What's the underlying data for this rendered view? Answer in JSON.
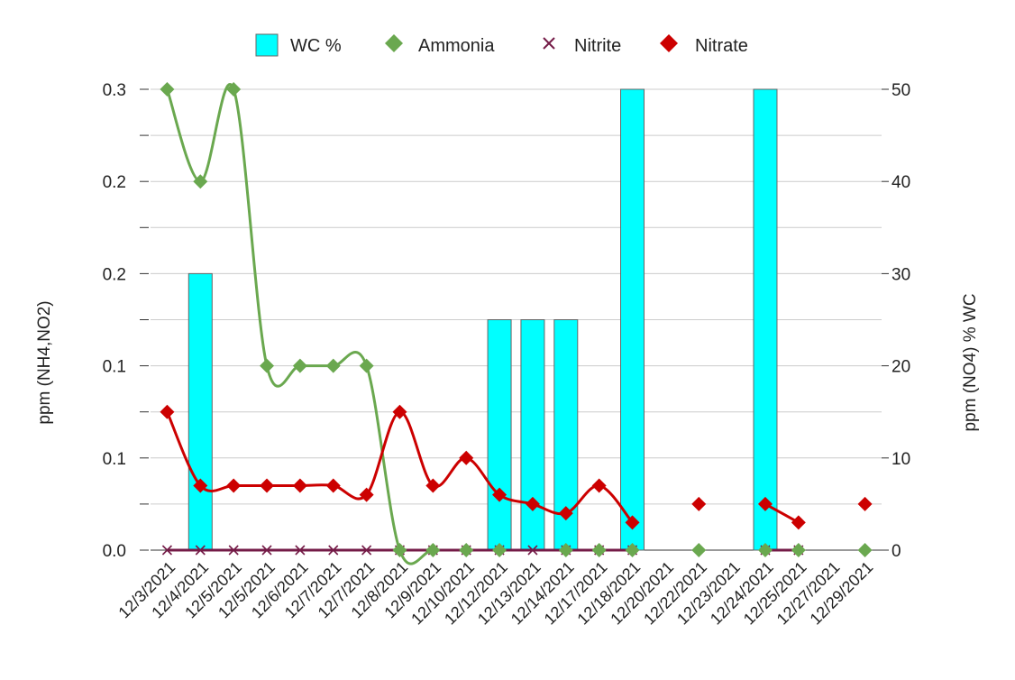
{
  "chart_data": {
    "type": "bar+line",
    "title": "",
    "categories": [
      "12/3/2021",
      "12/4/2021",
      "12/5/2021",
      "12/5/2021",
      "12/6/2021",
      "12/7/2021",
      "12/7/2021",
      "12/8/2021",
      "12/9/2021",
      "12/10/2021",
      "12/12/2021",
      "12/13/2021",
      "12/14/2021",
      "12/17/2021",
      "12/18/2021",
      "12/20/2021",
      "12/22/2021",
      "12/23/2021",
      "12/24/2021",
      "12/25/2021",
      "12/27/2021",
      "12/29/2021"
    ],
    "left_axis": {
      "label": "ppm (NH4,NO2)",
      "range": [
        0,
        0.25
      ],
      "major_ticks": [
        0,
        0.05,
        0.1,
        0.15,
        0.2,
        0.25
      ],
      "tick_labels": [
        "0.0",
        "0.1",
        "0.1",
        "0.2",
        "0.2",
        "0.3"
      ]
    },
    "right_axis": {
      "label": "ppm (NO4) % WC",
      "range": [
        0,
        50
      ],
      "ticks": [
        0,
        10,
        20,
        30,
        40,
        50
      ],
      "tick_labels": [
        "0",
        "10",
        "20",
        "30",
        "40",
        "50"
      ]
    },
    "legend": {
      "position": "top",
      "entries": [
        {
          "name": "WC %",
          "marker": "bar"
        },
        {
          "name": "Ammonia",
          "marker": "diamond"
        },
        {
          "name": "Nitrite",
          "marker": "x"
        },
        {
          "name": "Nitrate",
          "marker": "diamond"
        }
      ]
    },
    "series": [
      {
        "name": "WC %",
        "type": "bar",
        "axis": "right",
        "color": "#00ffff",
        "values": [
          null,
          30,
          null,
          null,
          null,
          null,
          null,
          null,
          null,
          null,
          25,
          25,
          25,
          null,
          50,
          null,
          null,
          null,
          50,
          null,
          null,
          null
        ]
      },
      {
        "name": "Ammonia",
        "type": "line",
        "axis": "left",
        "color": "#6aa84f",
        "values": [
          0.25,
          0.2,
          0.25,
          0.1,
          0.1,
          0.1,
          0.1,
          0.0,
          0.0,
          0.0,
          0.0,
          null,
          0.0,
          0.0,
          0.0,
          null,
          0.0,
          null,
          0.0,
          0.0,
          null,
          0.0
        ]
      },
      {
        "name": "Nitrite",
        "type": "line",
        "axis": "left",
        "color": "#741b47",
        "values": [
          0,
          0,
          0,
          0,
          0,
          0,
          0,
          0,
          0,
          0,
          0,
          0,
          0,
          0,
          0,
          null,
          null,
          null,
          0,
          0,
          null,
          null
        ]
      },
      {
        "name": "Nitrate",
        "type": "line",
        "axis": "right",
        "color": "#cc0000",
        "values": [
          15,
          7,
          7,
          7,
          7,
          7,
          6,
          15,
          7,
          10,
          6,
          5,
          4,
          7,
          3,
          null,
          5,
          null,
          5,
          3,
          null,
          5
        ]
      }
    ],
    "grid": true
  }
}
